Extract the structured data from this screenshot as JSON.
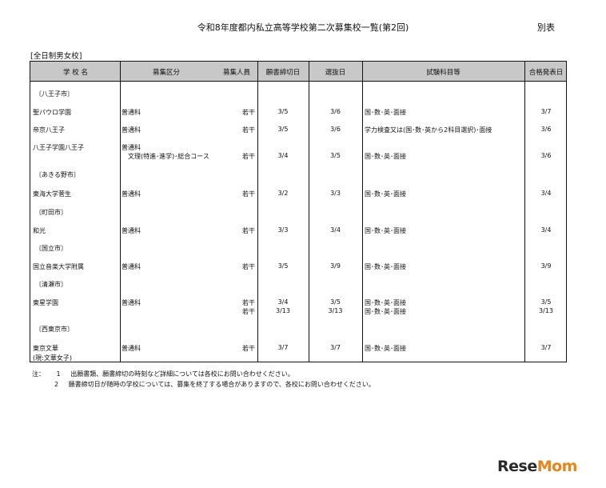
{
  "title": "令和8年度都内私立高等学校第二次募集校一覧(第2回)",
  "annex": "別表",
  "category": "[全日制男女校]",
  "headers": {
    "name": "学 校 名",
    "division": "募集区分",
    "capacity": "募集人員",
    "deadline": "願書締切日",
    "selection": "選抜日",
    "subjects": "試験科目等",
    "result": "合格発表日"
  },
  "rows": [
    {
      "type": "area",
      "name": "〔八王子市〕"
    },
    {
      "type": "school",
      "name": "聖パウロ学園",
      "division": "普通科",
      "capacity": "若干",
      "deadline": "3/5",
      "selection": "3/6",
      "subjects": "国･数･英･面接",
      "result": "3/7"
    },
    {
      "type": "school",
      "name": "帝京八王子",
      "division": "普通科",
      "capacity": "若干",
      "deadline": "3/5",
      "selection": "3/6",
      "subjects": "学力検査又は(国･数･英から2科目選択)･面接",
      "result": "3/6"
    },
    {
      "type": "school",
      "name": "八王子学園八王子",
      "division": "普通科",
      "division2": "文理(特進･進学)･総合コース",
      "capacity": "若干",
      "deadline": "3/4",
      "selection": "3/5",
      "subjects": "国･数･英･面接",
      "result": "3/6"
    },
    {
      "type": "area",
      "name": "〔あきる野市〕"
    },
    {
      "type": "school",
      "name": "東海大学菅生",
      "division": "普通科",
      "capacity": "若干",
      "deadline": "3/2",
      "selection": "3/3",
      "subjects": "国･数･英･面接",
      "result": "3/4"
    },
    {
      "type": "area",
      "name": "〔町田市〕"
    },
    {
      "type": "school",
      "name": "和光",
      "division": "普通科",
      "capacity": "若干",
      "deadline": "3/3",
      "selection": "3/4",
      "subjects": "国･数･英･面接",
      "result": "3/4"
    },
    {
      "type": "area",
      "name": "〔国立市〕"
    },
    {
      "type": "school",
      "name": "国立音楽大学附属",
      "division": "普通科",
      "capacity": "若干",
      "deadline": "3/5",
      "selection": "3/9",
      "subjects": "国･数･英･面接",
      "result": "3/9"
    },
    {
      "type": "area",
      "name": "〔清瀬市〕"
    },
    {
      "type": "school",
      "name": "東星学園",
      "division": "普通科",
      "capacity": "若干",
      "deadline": "3/4",
      "selection": "3/5",
      "subjects": "国･数･英･面接",
      "result": "3/5",
      "capacity2": "若干",
      "deadline2": "3/13",
      "selection2": "3/13",
      "subjects2": "国･数･英･面接",
      "result2": "3/13"
    },
    {
      "type": "area",
      "name": "〔西東京市〕"
    },
    {
      "type": "school",
      "name": "東京文華",
      "name2": "(現:文華女子)",
      "division": "普通科",
      "capacity": "若干",
      "deadline": "3/7",
      "selection": "3/7",
      "subjects": "国･数･英･面接",
      "result": "3/7"
    }
  ],
  "notes": {
    "label": "注：",
    "items": [
      {
        "num": "1",
        "text": "出願書類、願書締切の時刻など詳細については各校にお問い合わせください。"
      },
      {
        "num": "2",
        "text": "願書締切日が随時の学校については、募集を終了する場合がありますので、各校にお問い合わせください。"
      }
    ]
  },
  "logo": {
    "text1": "Rese",
    "text2": "Mom",
    "accent": "#e8841a"
  }
}
